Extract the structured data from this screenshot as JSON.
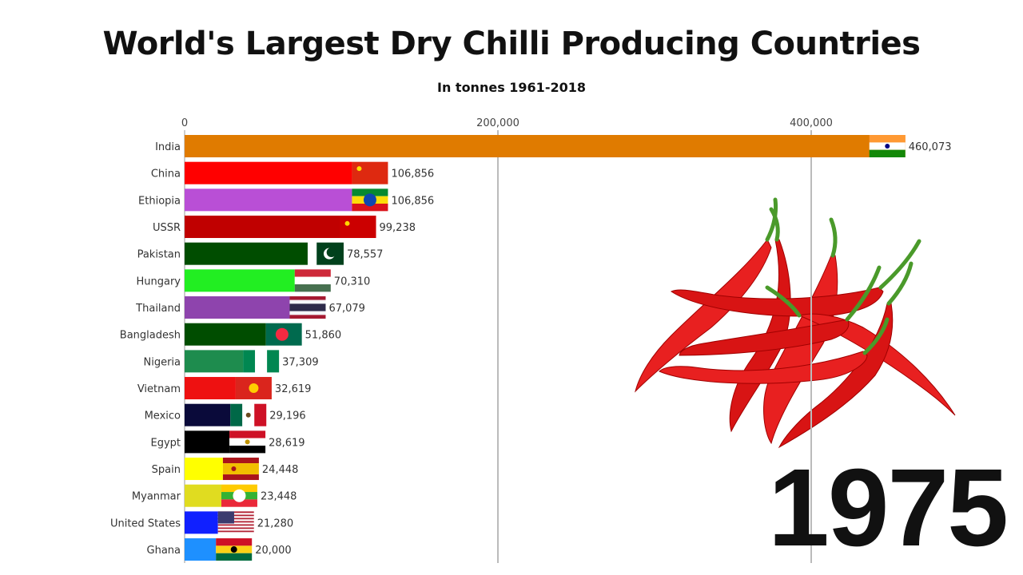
{
  "chart_data": {
    "type": "bar",
    "orientation": "horizontal",
    "title": "World's Largest Dry Chilli Producing Countries",
    "subtitle": "In tonnes 1961-2018",
    "year": "1975",
    "xlim": [
      0,
      460073
    ],
    "x_ticks": [
      0,
      200000,
      400000
    ],
    "x_tick_labels": [
      "0",
      "200,000",
      "400,000"
    ],
    "grid": true,
    "categories": [
      "India",
      "China",
      "Ethiopia",
      "USSR",
      "Pakistan",
      "Hungary",
      "Thailand",
      "Bangladesh",
      "Nigeria",
      "Vietnam",
      "Mexico",
      "Egypt",
      "Spain",
      "Myanmar",
      "United States",
      "Ghana"
    ],
    "values": [
      460073,
      106856,
      106856,
      99238,
      78557,
      70310,
      67079,
      51860,
      37309,
      32619,
      29196,
      28619,
      24448,
      23448,
      21280,
      20000
    ],
    "value_labels": [
      "460,073",
      "106,856",
      "106,856",
      "99,238",
      "78,557",
      "70,310",
      "67,079",
      "51,860",
      "37,309",
      "32,619",
      "29,196",
      "28,619",
      "24,448",
      "23,448",
      "21,280",
      "20,000"
    ],
    "colors": [
      "#e07b00",
      "#ff0000",
      "#b94fd6",
      "#c00000",
      "#004d00",
      "#22ee22",
      "#8e44ad",
      "#004d00",
      "#1e8c4e",
      "#ee1111",
      "#0a0a3a",
      "#000000",
      "#ffff00",
      "#e0dc20",
      "#1020ff",
      "#1e90ff"
    ],
    "flags": [
      "india-flag",
      "china-flag",
      "ethiopia-flag",
      "ussr-flag",
      "pakistan-flag",
      "hungary-flag",
      "thailand-flag",
      "bangladesh-flag",
      "nigeria-flag",
      "vietnam-flag",
      "mexico-flag",
      "egypt-flag",
      "spain-flag",
      "myanmar-flag",
      "usa-flag",
      "ghana-flag"
    ]
  }
}
